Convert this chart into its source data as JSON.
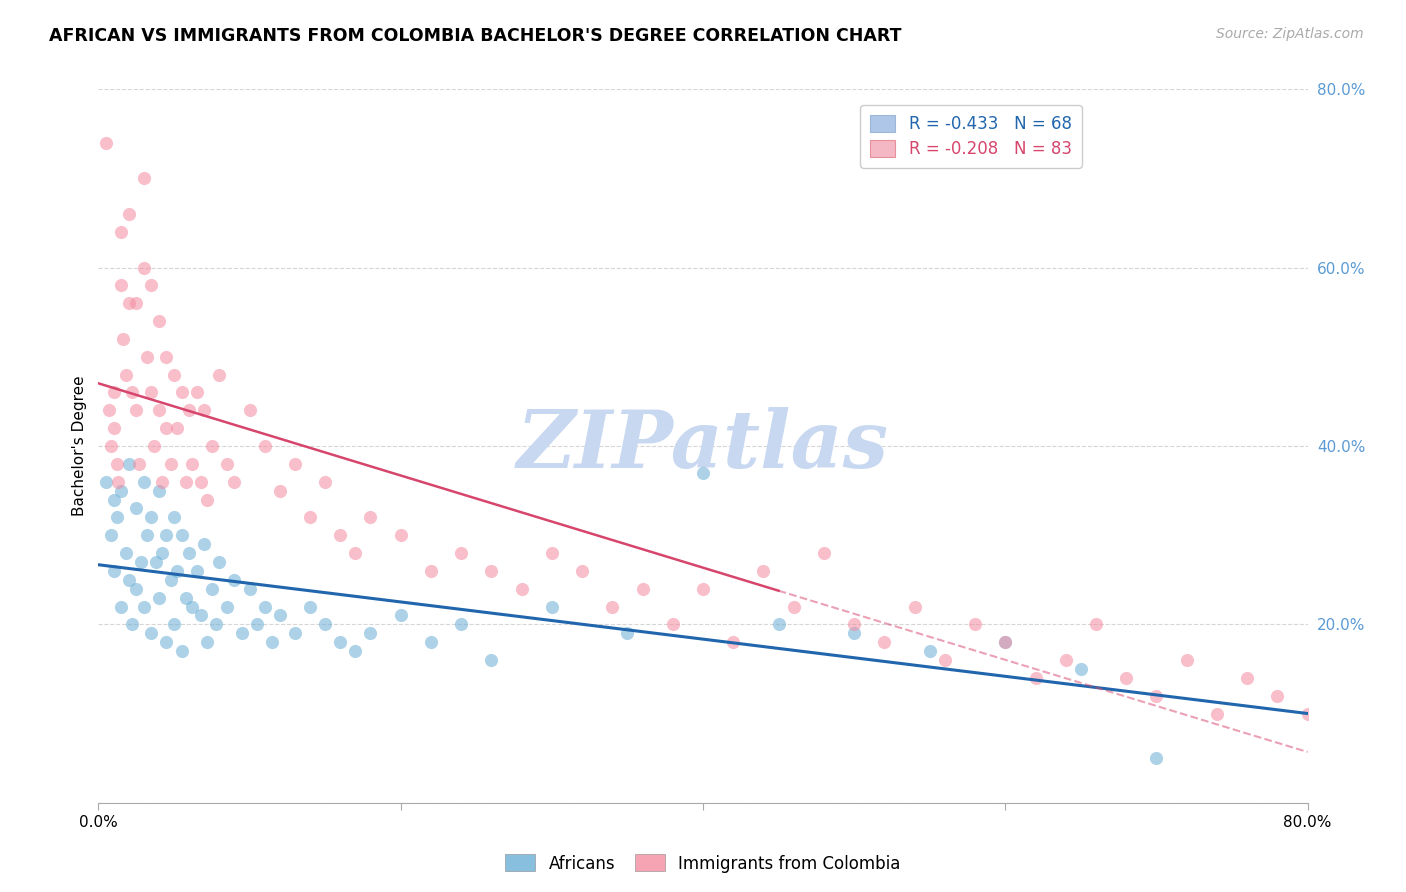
{
  "title": "AFRICAN VS IMMIGRANTS FROM COLOMBIA BACHELOR'S DEGREE CORRELATION CHART",
  "source": "Source: ZipAtlas.com",
  "ylabel": "Bachelor's Degree",
  "xlim": [
    0.0,
    0.8
  ],
  "ylim": [
    0.0,
    0.8
  ],
  "africans_color": "#6baed6",
  "colombia_color": "#f48ca0",
  "africans_line_color": "#2166ac",
  "colombia_line_color": "#d6456c",
  "watermark_text": "ZIPatlas",
  "watermark_color": "#c8d8f0",
  "africans_R": -0.433,
  "africans_N": 68,
  "colombia_R": -0.208,
  "colombia_N": 83,
  "legend_blue_color": "#aec6e8",
  "legend_pink_color": "#f4b8c4",
  "africans_x": [
    0.005,
    0.008,
    0.01,
    0.01,
    0.012,
    0.015,
    0.015,
    0.018,
    0.02,
    0.02,
    0.022,
    0.025,
    0.025,
    0.028,
    0.03,
    0.03,
    0.032,
    0.035,
    0.035,
    0.038,
    0.04,
    0.04,
    0.042,
    0.045,
    0.045,
    0.048,
    0.05,
    0.05,
    0.052,
    0.055,
    0.055,
    0.058,
    0.06,
    0.062,
    0.065,
    0.068,
    0.07,
    0.072,
    0.075,
    0.078,
    0.08,
    0.085,
    0.09,
    0.095,
    0.1,
    0.105,
    0.11,
    0.115,
    0.12,
    0.13,
    0.14,
    0.15,
    0.16,
    0.17,
    0.18,
    0.2,
    0.22,
    0.24,
    0.26,
    0.3,
    0.35,
    0.4,
    0.45,
    0.5,
    0.55,
    0.6,
    0.65,
    0.7
  ],
  "africans_y": [
    0.36,
    0.3,
    0.34,
    0.26,
    0.32,
    0.35,
    0.22,
    0.28,
    0.38,
    0.25,
    0.2,
    0.33,
    0.24,
    0.27,
    0.36,
    0.22,
    0.3,
    0.32,
    0.19,
    0.27,
    0.35,
    0.23,
    0.28,
    0.3,
    0.18,
    0.25,
    0.32,
    0.2,
    0.26,
    0.3,
    0.17,
    0.23,
    0.28,
    0.22,
    0.26,
    0.21,
    0.29,
    0.18,
    0.24,
    0.2,
    0.27,
    0.22,
    0.25,
    0.19,
    0.24,
    0.2,
    0.22,
    0.18,
    0.21,
    0.19,
    0.22,
    0.2,
    0.18,
    0.17,
    0.19,
    0.21,
    0.18,
    0.2,
    0.16,
    0.22,
    0.19,
    0.37,
    0.2,
    0.19,
    0.17,
    0.18,
    0.15,
    0.05
  ],
  "colombia_x": [
    0.005,
    0.007,
    0.008,
    0.01,
    0.01,
    0.012,
    0.013,
    0.015,
    0.015,
    0.016,
    0.018,
    0.02,
    0.02,
    0.022,
    0.025,
    0.025,
    0.027,
    0.03,
    0.03,
    0.032,
    0.035,
    0.035,
    0.037,
    0.04,
    0.04,
    0.042,
    0.045,
    0.045,
    0.048,
    0.05,
    0.052,
    0.055,
    0.058,
    0.06,
    0.062,
    0.065,
    0.068,
    0.07,
    0.072,
    0.075,
    0.08,
    0.085,
    0.09,
    0.1,
    0.11,
    0.12,
    0.13,
    0.14,
    0.15,
    0.16,
    0.17,
    0.18,
    0.2,
    0.22,
    0.24,
    0.26,
    0.28,
    0.3,
    0.32,
    0.34,
    0.36,
    0.38,
    0.4,
    0.42,
    0.44,
    0.46,
    0.48,
    0.5,
    0.52,
    0.54,
    0.56,
    0.58,
    0.6,
    0.62,
    0.64,
    0.66,
    0.68,
    0.7,
    0.72,
    0.74,
    0.76,
    0.78,
    0.8
  ],
  "colombia_y": [
    0.74,
    0.44,
    0.4,
    0.46,
    0.42,
    0.38,
    0.36,
    0.64,
    0.58,
    0.52,
    0.48,
    0.66,
    0.56,
    0.46,
    0.56,
    0.44,
    0.38,
    0.7,
    0.6,
    0.5,
    0.58,
    0.46,
    0.4,
    0.54,
    0.44,
    0.36,
    0.5,
    0.42,
    0.38,
    0.48,
    0.42,
    0.46,
    0.36,
    0.44,
    0.38,
    0.46,
    0.36,
    0.44,
    0.34,
    0.4,
    0.48,
    0.38,
    0.36,
    0.44,
    0.4,
    0.35,
    0.38,
    0.32,
    0.36,
    0.3,
    0.28,
    0.32,
    0.3,
    0.26,
    0.28,
    0.26,
    0.24,
    0.28,
    0.26,
    0.22,
    0.24,
    0.2,
    0.24,
    0.18,
    0.26,
    0.22,
    0.28,
    0.2,
    0.18,
    0.22,
    0.16,
    0.2,
    0.18,
    0.14,
    0.16,
    0.2,
    0.14,
    0.12,
    0.16,
    0.1,
    0.14,
    0.12,
    0.1
  ]
}
